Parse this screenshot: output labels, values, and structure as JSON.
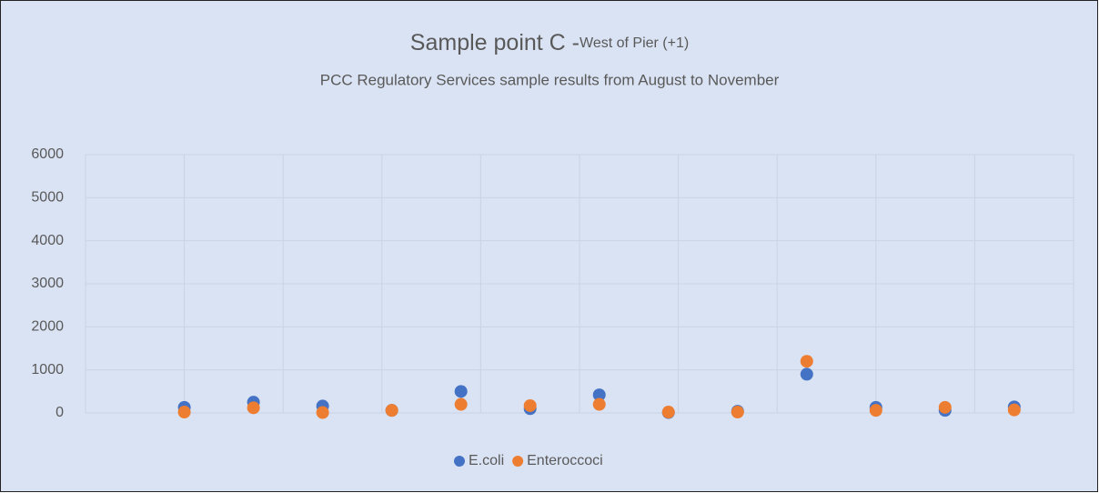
{
  "chart_data": {
    "type": "scatter",
    "title": "Sample point C -",
    "title_small": "West of Pier (+1)",
    "subtitle": "PCC Regulatory Services sample results from August to November",
    "x": [
      10,
      17,
      24,
      31,
      38,
      45,
      52,
      59,
      66,
      73,
      80,
      87,
      94
    ],
    "xlim": [
      0,
      100
    ],
    "xticks": [
      0,
      10,
      20,
      30,
      40,
      50,
      60,
      70,
      80,
      90,
      100
    ],
    "ylim": [
      0,
      6000
    ],
    "yticks": [
      0,
      1000,
      2000,
      3000,
      4000,
      5000,
      6000
    ],
    "grid": true,
    "legend": "bottom",
    "series": [
      {
        "name": "E.coli",
        "color": "#4472c4",
        "values": [
          130,
          250,
          160,
          60,
          500,
          100,
          420,
          10,
          40,
          900,
          130,
          60,
          140
        ]
      },
      {
        "name": "Enteroccoci",
        "color": "#ed7d31",
        "values": [
          20,
          120,
          10,
          60,
          200,
          170,
          200,
          20,
          20,
          1200,
          60,
          130,
          70
        ]
      }
    ]
  }
}
